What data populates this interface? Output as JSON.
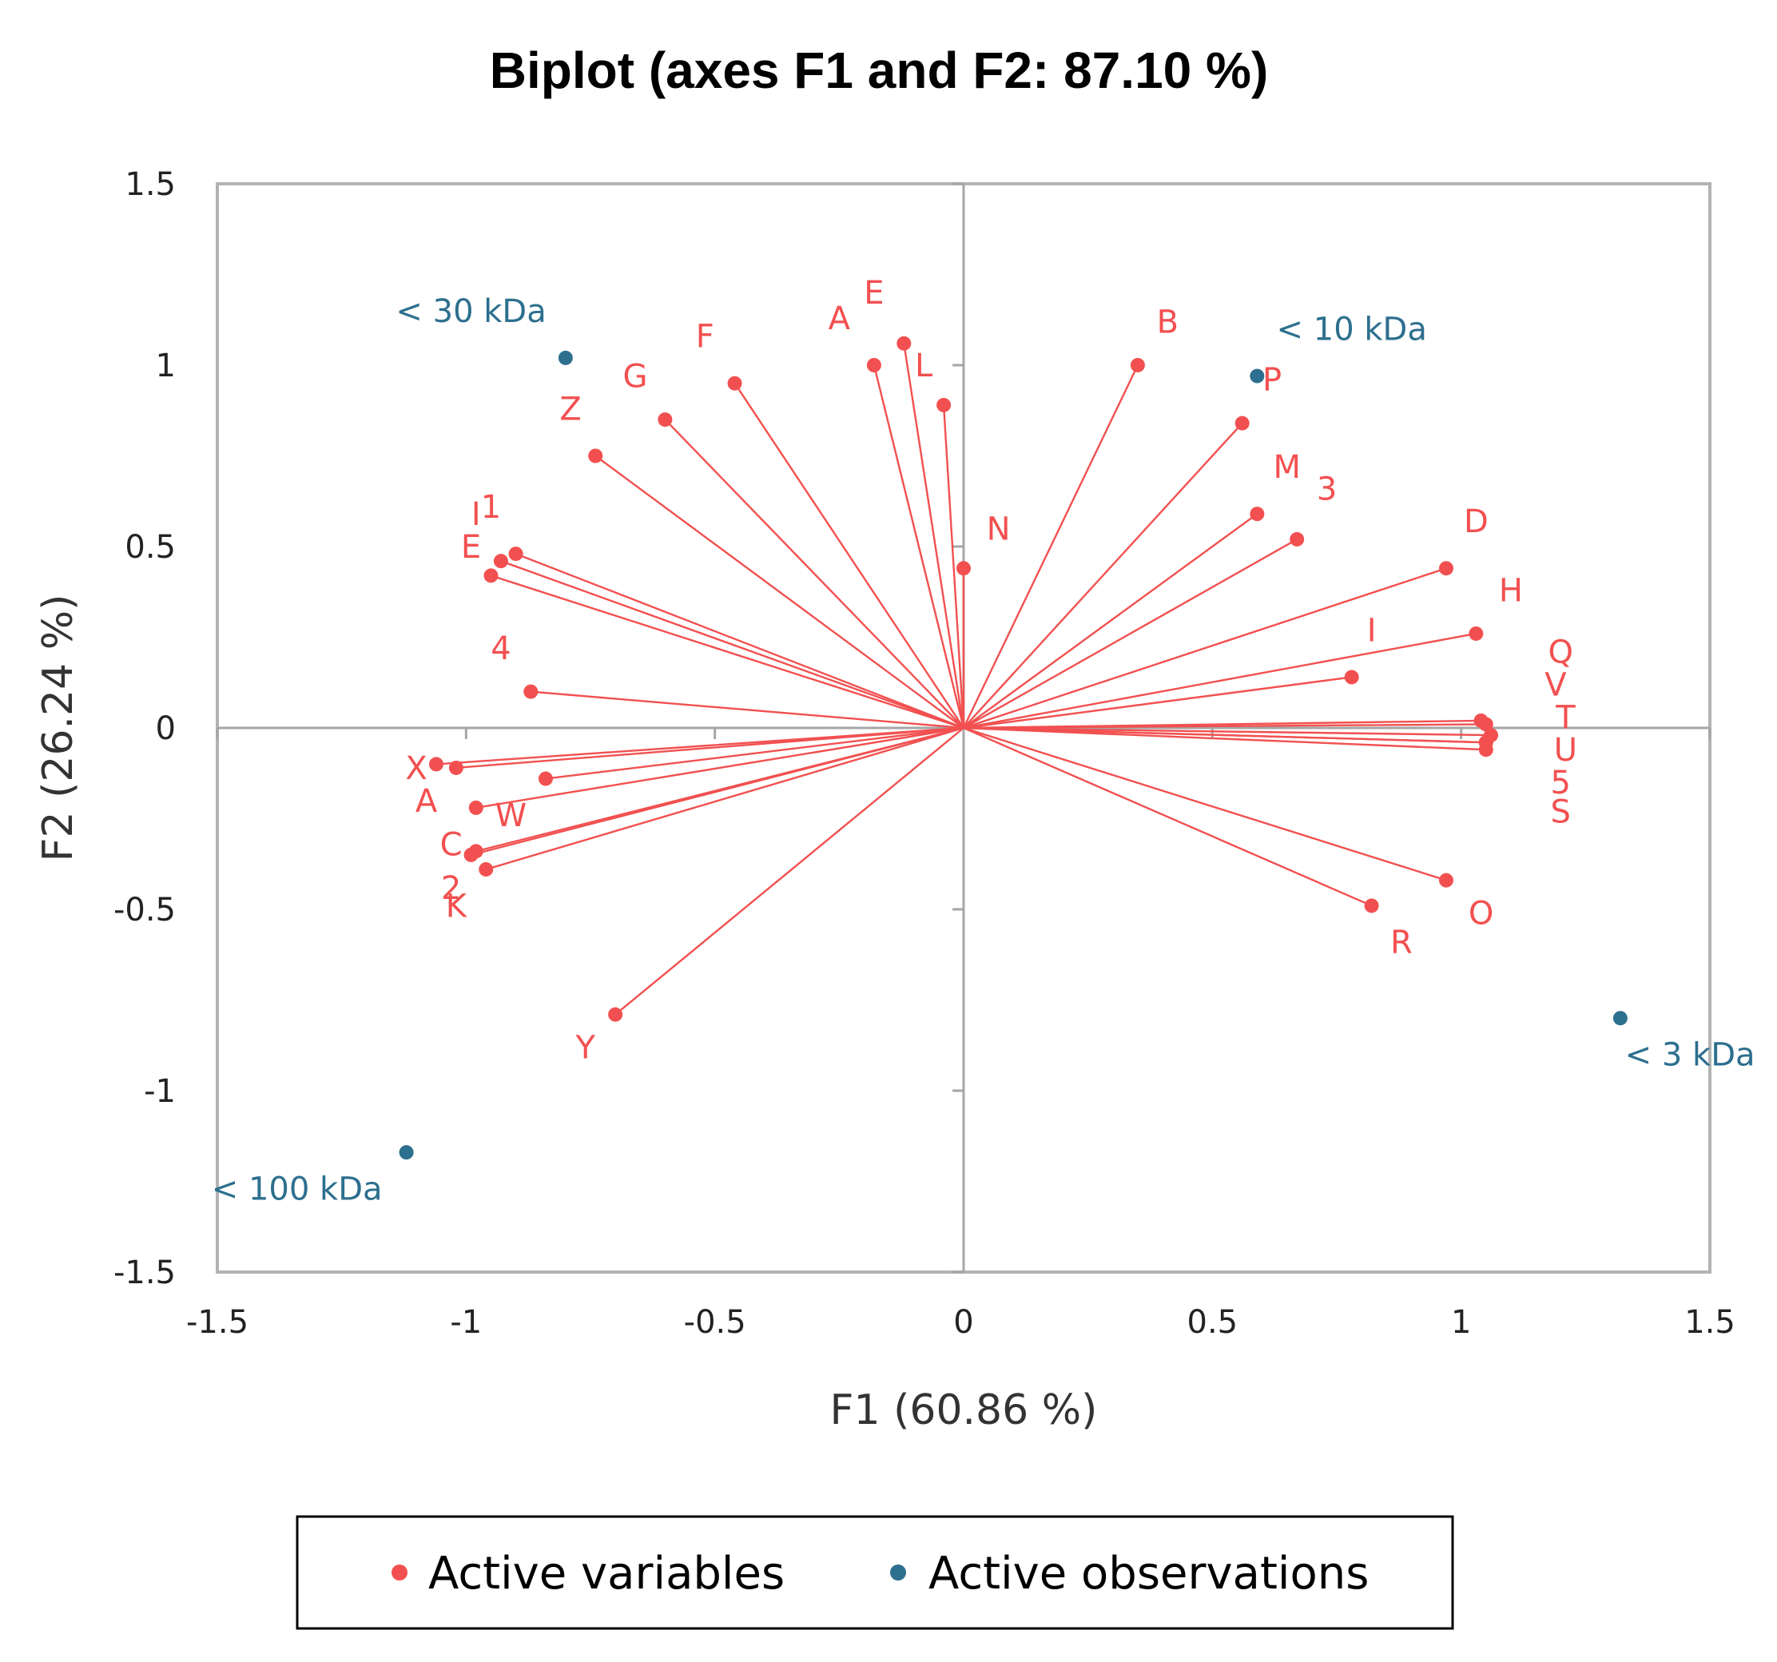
{
  "chart_data": {
    "type": "scatter",
    "title": "Biplot (axes F1 and F2: 87.10 %)",
    "xlabel": "F1 (60.86 %)",
    "ylabel": "F2 (26.24 %)",
    "xlim": [
      -1.5,
      1.5
    ],
    "ylim": [
      -1.5,
      1.5
    ],
    "x_ticks": [
      "-1.5",
      "-1",
      "-0.5",
      "0",
      "0.5",
      "1",
      "1.5"
    ],
    "y_ticks": [
      "1.5",
      "1",
      "0.5",
      "0",
      "-0.5",
      "-1",
      "-1.5"
    ],
    "grid": false,
    "legend_position": "bottom",
    "colors": {
      "variables": "#f25050",
      "observations": "#2d6f8e",
      "vectors": "#f25050"
    },
    "series": [
      {
        "name": "Active variables",
        "kind": "variables",
        "points": [
          {
            "label": "A",
            "x": -1.02,
            "y": -0.11,
            "dx": -1.08,
            "dy": -0.2
          },
          {
            "label": "A",
            "x": -0.18,
            "y": 1.0,
            "dx": -0.25,
            "dy": 1.13
          },
          {
            "label": "B",
            "x": 0.35,
            "y": 1.0,
            "dx": 0.41,
            "dy": 1.12
          },
          {
            "label": "C",
            "x": -0.98,
            "y": -0.34,
            "dx": -1.03,
            "dy": -0.32
          },
          {
            "label": "D",
            "x": 0.97,
            "y": 0.44,
            "dx": 1.03,
            "dy": 0.57
          },
          {
            "label": "E",
            "x": -0.12,
            "y": 1.06,
            "dx": -0.18,
            "dy": 1.2
          },
          {
            "label": "E",
            "x": -0.93,
            "y": 0.46,
            "dx": -0.99,
            "dy": 0.5
          },
          {
            "label": "F",
            "x": -0.46,
            "y": 0.95,
            "dx": -0.52,
            "dy": 1.08
          },
          {
            "label": "G",
            "x": -0.6,
            "y": 0.85,
            "dx": -0.66,
            "dy": 0.97
          },
          {
            "label": "H",
            "x": 1.03,
            "y": 0.26,
            "dx": 1.1,
            "dy": 0.38
          },
          {
            "label": "I",
            "x": 0.78,
            "y": 0.14,
            "dx": 0.82,
            "dy": 0.27
          },
          {
            "label": "I",
            "x": -0.95,
            "y": 0.42,
            "dx": -0.98,
            "dy": 0.59
          },
          {
            "label": "1",
            "x": -0.9,
            "y": 0.48,
            "dx": -0.95,
            "dy": 0.61
          },
          {
            "label": "K",
            "x": -0.96,
            "y": -0.39,
            "dx": -1.02,
            "dy": -0.49
          },
          {
            "label": "2",
            "x": -0.99,
            "y": -0.35,
            "dx": -1.03,
            "dy": -0.44
          },
          {
            "label": "L",
            "x": -0.04,
            "y": 0.89,
            "dx": -0.08,
            "dy": 1.0
          },
          {
            "label": "M",
            "x": 0.59,
            "y": 0.59,
            "dx": 0.65,
            "dy": 0.72
          },
          {
            "label": "N",
            "x": 0.0,
            "y": 0.44,
            "dx": 0.07,
            "dy": 0.55
          },
          {
            "label": "O",
            "x": 0.97,
            "y": -0.42,
            "dx": 1.04,
            "dy": -0.51
          },
          {
            "label": "P",
            "x": 0.56,
            "y": 0.84,
            "dx": 0.62,
            "dy": 0.96
          },
          {
            "label": "Q",
            "x": 1.04,
            "y": 0.02,
            "dx": 1.2,
            "dy": 0.21
          },
          {
            "label": "R",
            "x": 0.82,
            "y": -0.49,
            "dx": 0.88,
            "dy": -0.59
          },
          {
            "label": "S",
            "x": 1.05,
            "y": -0.06,
            "dx": 1.2,
            "dy": -0.23
          },
          {
            "label": "T",
            "x": 1.06,
            "y": -0.02,
            "dx": 1.21,
            "dy": 0.03
          },
          {
            "label": "U",
            "x": 1.05,
            "y": -0.04,
            "dx": 1.21,
            "dy": -0.06
          },
          {
            "label": "V",
            "x": 1.05,
            "y": 0.01,
            "dx": 1.19,
            "dy": 0.12
          },
          {
            "label": "W",
            "x": -0.98,
            "y": -0.22,
            "dx": -0.91,
            "dy": -0.24
          },
          {
            "label": "X",
            "x": -1.06,
            "y": -0.1,
            "dx": -1.1,
            "dy": -0.11
          },
          {
            "label": "Y",
            "x": -0.7,
            "y": -0.79,
            "dx": -0.76,
            "dy": -0.88
          },
          {
            "label": "Z",
            "x": -0.74,
            "y": 0.75,
            "dx": -0.79,
            "dy": 0.88
          },
          {
            "label": "3",
            "x": 0.67,
            "y": 0.52,
            "dx": 0.73,
            "dy": 0.66
          },
          {
            "label": "4",
            "x": -0.87,
            "y": 0.1,
            "dx": -0.93,
            "dy": 0.22
          },
          {
            "label": "5",
            "x": 1.05,
            "y": -0.04,
            "dx": 1.2,
            "dy": -0.15
          },
          {
            "label": "",
            "x": -0.84,
            "y": -0.14,
            "dx": -0.84,
            "dy": -0.14
          }
        ]
      },
      {
        "name": "Active observations",
        "kind": "observations",
        "points": [
          {
            "label": "< 30 kDa",
            "x": -0.8,
            "y": 1.02,
            "dx": -0.99,
            "dy": 1.15
          },
          {
            "label": "< 10 kDa",
            "x": 0.59,
            "y": 0.97,
            "dx": 0.78,
            "dy": 1.1
          },
          {
            "label": "< 3 kDa",
            "x": 1.32,
            "y": -0.8,
            "dx": 1.46,
            "dy": -0.9
          },
          {
            "label": "< 100 kDa",
            "x": -1.12,
            "y": -1.17,
            "dx": -1.34,
            "dy": -1.27
          }
        ]
      }
    ]
  }
}
